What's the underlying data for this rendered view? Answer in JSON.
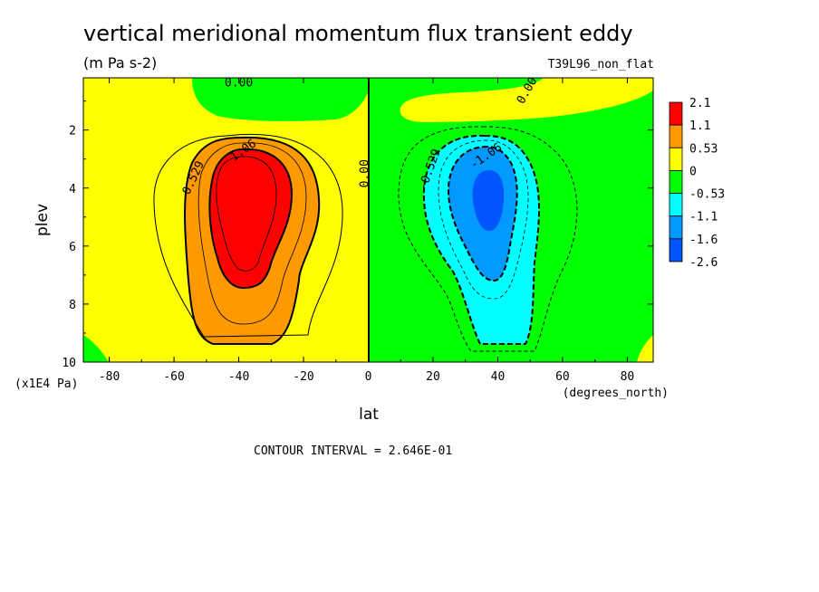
{
  "title": "vertical meridional momentum flux transient eddy",
  "units": "(m Pa s-2)",
  "dataset": "T39L96_non_flat",
  "footer": "CONTOUR INTERVAL = 2.646E-01",
  "colors": {
    "c_2_1": "#ff0000",
    "c_1_1": "#ff9900",
    "c_0_53": "#ffff00",
    "c_0": "#00ff00",
    "c_m0_53": "#00ffff",
    "c_m1_1": "#0099ff",
    "c_m1_6": "#0055ff"
  },
  "chart_data": {
    "type": "heatmap",
    "xlabel": "lat",
    "xunits": "(degrees_north)",
    "ylabel": "plev",
    "yunits": "(x1E4 Pa)",
    "xlim": [
      -88,
      88
    ],
    "ylim": [
      0.2,
      10
    ],
    "y_inverted": true,
    "x_ticks": [
      -80,
      -60,
      -40,
      -20,
      0,
      20,
      40,
      60,
      80
    ],
    "y_ticks": [
      2,
      4,
      6,
      8,
      10
    ],
    "contour_interval": 0.2646,
    "colorbar": {
      "labels": [
        "2.1",
        "1.1",
        "0.53",
        "0",
        "-0.53",
        "-1.1",
        "-1.6",
        "-2.6"
      ],
      "colors": [
        "#ff0000",
        "#ff9900",
        "#ffff00",
        "#00ff00",
        "#00ffff",
        "#0099ff",
        "#0055ff"
      ]
    },
    "contour_labels": [
      {
        "text": "0.00",
        "lat": -40,
        "plev": 0.5
      },
      {
        "text": "0.00",
        "lat": 50,
        "plev": 0.7
      },
      {
        "text": "0.00",
        "lat": 0,
        "plev": 3.5
      },
      {
        "text": "0.529",
        "lat": -53,
        "plev": 3.7
      },
      {
        "text": "1.06",
        "lat": -38,
        "plev": 2.8
      },
      {
        "text": "-0.529",
        "lat": 20,
        "plev": 3.4
      },
      {
        "text": "-1.06",
        "lat": 37,
        "plev": 3.0
      }
    ]
  }
}
